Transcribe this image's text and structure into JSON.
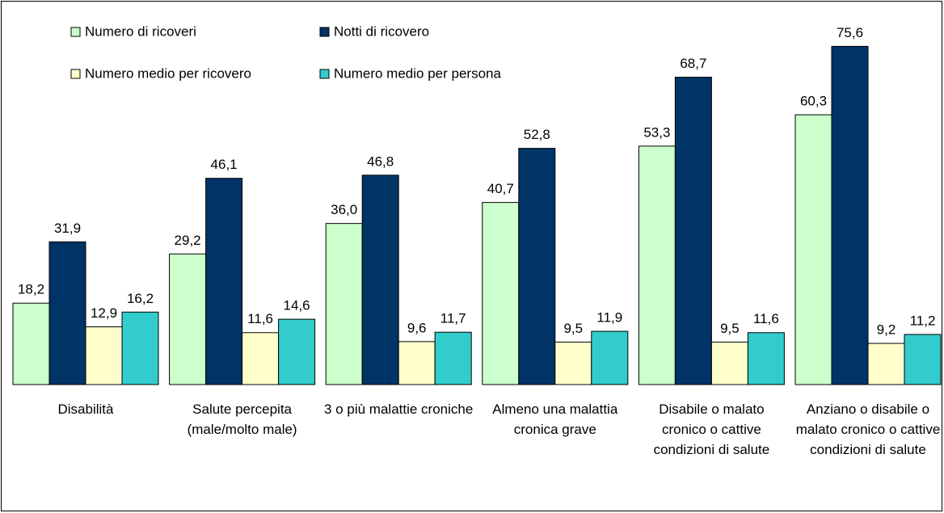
{
  "chart_data": {
    "type": "bar",
    "categories": [
      "Disabilità",
      "Salute percepita (male/molto male)",
      "3 o più malattie croniche",
      "Almeno una malattia cronica grave",
      "Disabile o malato cronico o cattive condizioni di salute",
      "Anziano o disabile o malato cronico o cattive condizioni di salute"
    ],
    "series": [
      {
        "name": "Numero di ricoveri",
        "color": "#ccffcc",
        "values": [
          18.2,
          29.2,
          36.0,
          40.7,
          53.3,
          60.3
        ],
        "value_labels": [
          "18,2",
          "29,2",
          "36,0",
          "40,7",
          "53,3",
          "60,3"
        ]
      },
      {
        "name": "Notti di ricovero",
        "color": "#003366",
        "values": [
          31.9,
          46.1,
          46.8,
          52.8,
          68.7,
          75.6
        ],
        "value_labels": [
          "31,9",
          "46,1",
          "46,8",
          "52,8",
          "68,7",
          "75,6"
        ]
      },
      {
        "name": "Numero medio per ricovero",
        "color": "#ffffcc",
        "values": [
          12.9,
          11.6,
          9.6,
          9.5,
          9.5,
          9.2
        ],
        "value_labels": [
          "12,9",
          "11,6",
          "9,6",
          "9,5",
          "9,5",
          "9,2"
        ]
      },
      {
        "name": "Numero medio per persona",
        "color": "#33cccc",
        "values": [
          16.2,
          14.6,
          11.7,
          11.9,
          11.6,
          11.2
        ],
        "value_labels": [
          "16,2",
          "14,6",
          "11,7",
          "11,9",
          "11,6",
          "11,2"
        ]
      }
    ],
    "ylim": [
      0,
      80
    ]
  }
}
